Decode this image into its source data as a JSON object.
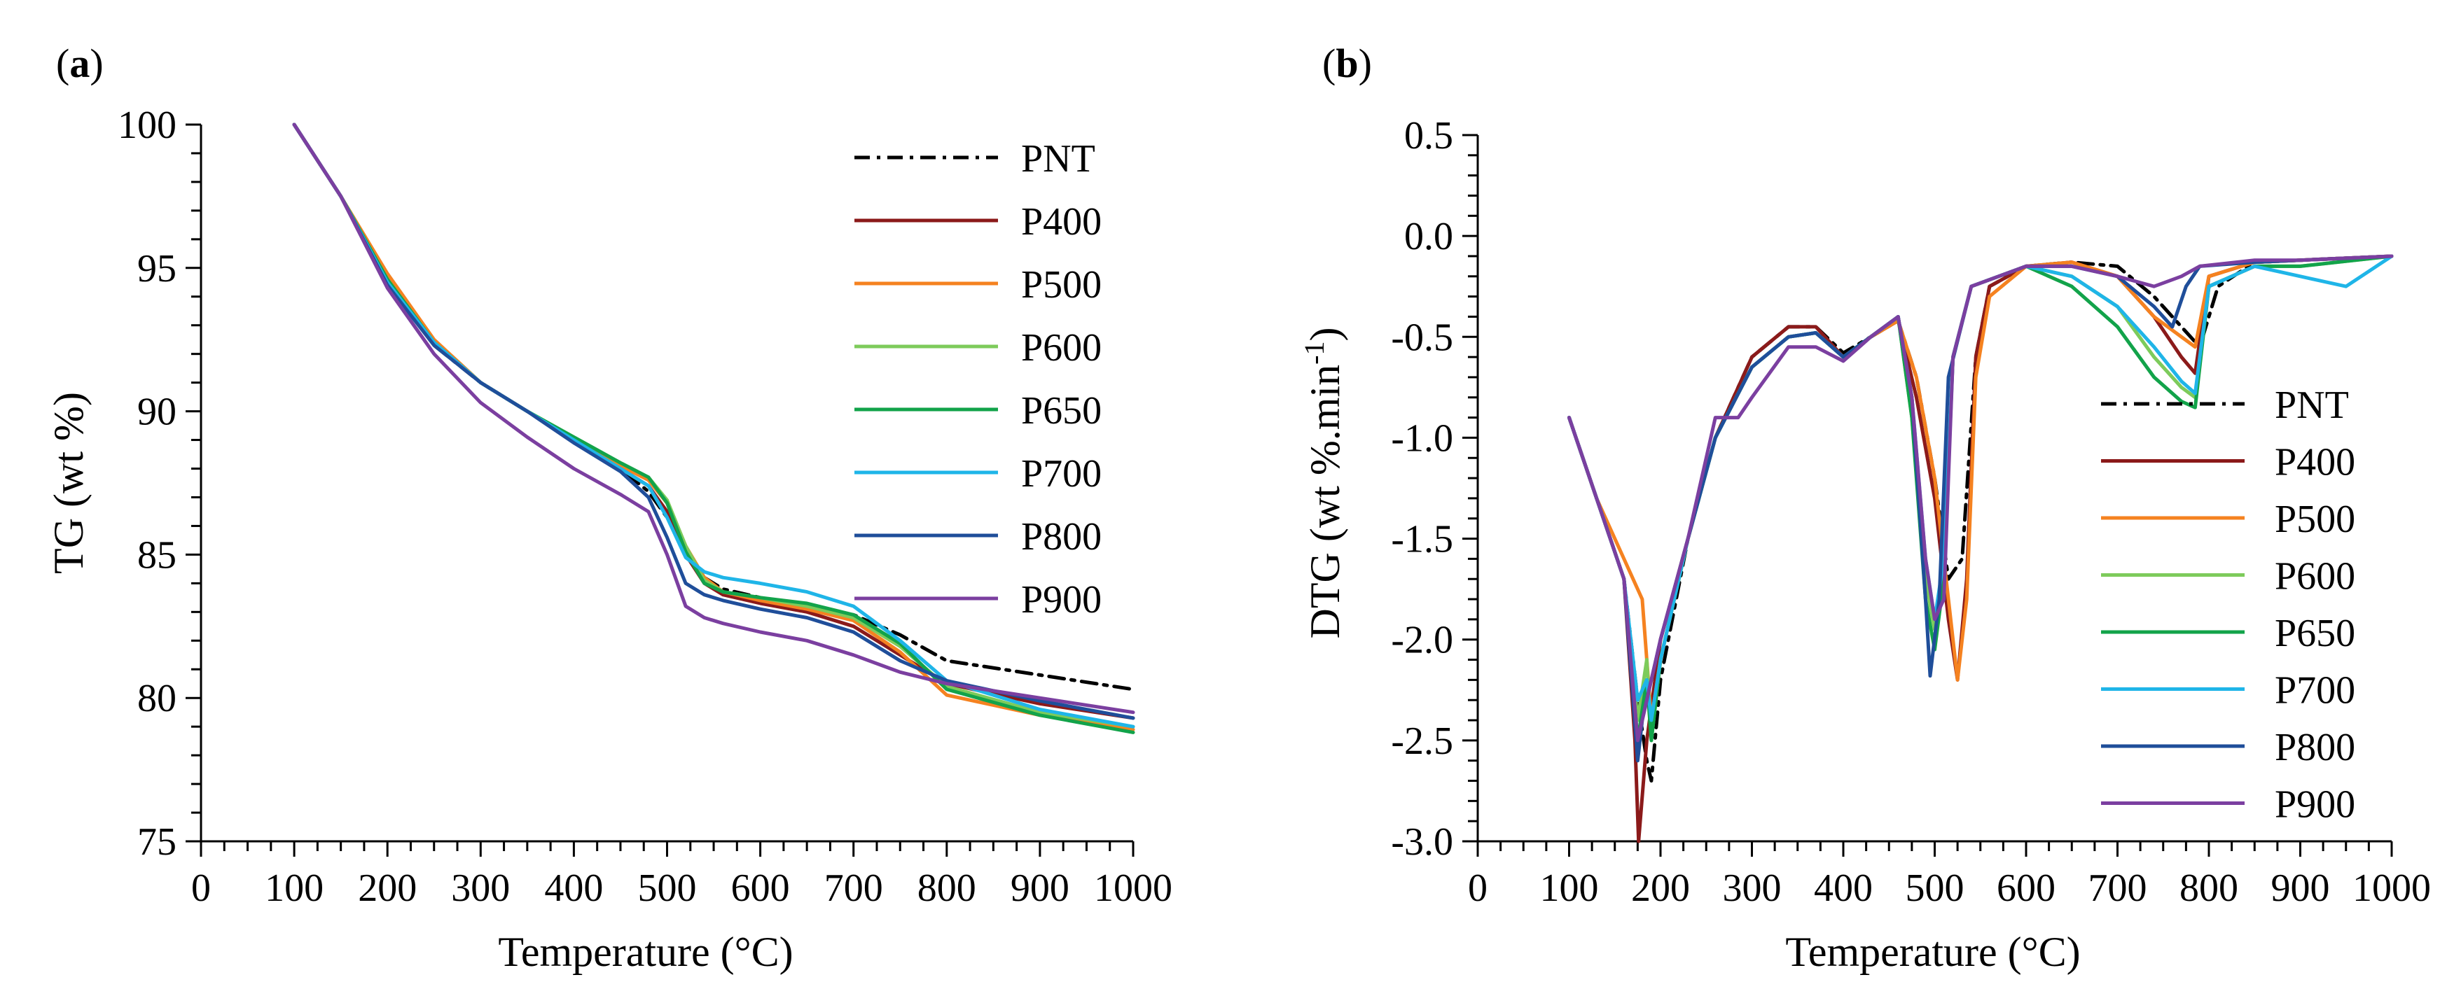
{
  "figure": {
    "panels": [
      {
        "label_open": "(",
        "label_letter": "a",
        "label_close": ")",
        "xlabel": "Temperature (°C)",
        "ylabel": "TG (wt %)"
      },
      {
        "label_open": "(",
        "label_letter": "b",
        "label_close": ")",
        "xlabel": "Temperature (°C)",
        "ylabel_main": "DTG (wt %.min",
        "ylabel_sup": "-1",
        "ylabel_end": ")"
      }
    ]
  },
  "chart_data": [
    {
      "type": "line",
      "title": "(a)",
      "xlabel": "Temperature (°C)",
      "ylabel": "TG (wt %)",
      "xlim": [
        0,
        1000
      ],
      "ylim": [
        75,
        100
      ],
      "x_ticks": [
        0,
        100,
        200,
        300,
        400,
        500,
        600,
        700,
        800,
        900,
        1000
      ],
      "y_ticks": [
        75,
        80,
        85,
        90,
        95,
        100
      ],
      "x_tick_labels": [
        "0",
        "100",
        "200",
        "300",
        "400",
        "500",
        "600",
        "700",
        "800",
        "900",
        "1000"
      ],
      "y_tick_labels": [
        "75",
        "80",
        "85",
        "90",
        "95",
        "100"
      ],
      "grid": false,
      "legend_position": "top-right",
      "series": [
        {
          "name": "PNT",
          "color": "#000000",
          "dash": "dashdot",
          "x": [
            100,
            150,
            200,
            250,
            300,
            350,
            400,
            450,
            480,
            500,
            520,
            540,
            560,
            600,
            650,
            700,
            750,
            800,
            900,
            1000
          ],
          "y": [
            100,
            97.5,
            94.5,
            92.3,
            91.0,
            90.0,
            89.0,
            88.0,
            87.2,
            86.3,
            85.0,
            84.2,
            83.8,
            83.5,
            83.2,
            82.9,
            82.2,
            81.3,
            80.8,
            80.3
          ]
        },
        {
          "name": "P400",
          "color": "#8B1A1A",
          "dash": "solid",
          "x": [
            100,
            150,
            200,
            250,
            300,
            350,
            400,
            450,
            480,
            500,
            520,
            540,
            560,
            600,
            650,
            700,
            750,
            800,
            900,
            1000
          ],
          "y": [
            100,
            97.5,
            94.6,
            92.4,
            91.0,
            90.0,
            89.0,
            88.0,
            87.4,
            86.5,
            85.0,
            84.0,
            83.6,
            83.3,
            83.0,
            82.5,
            81.5,
            80.5,
            79.8,
            79.3
          ]
        },
        {
          "name": "P500",
          "color": "#F58220",
          "dash": "solid",
          "x": [
            100,
            150,
            200,
            250,
            300,
            350,
            400,
            450,
            480,
            500,
            520,
            540,
            560,
            600,
            650,
            700,
            750,
            800,
            900,
            1000
          ],
          "y": [
            100,
            97.5,
            94.8,
            92.5,
            91.0,
            90.0,
            89.0,
            88.1,
            87.6,
            86.8,
            85.3,
            84.2,
            83.7,
            83.4,
            83.1,
            82.7,
            81.6,
            80.1,
            79.4,
            78.9
          ]
        },
        {
          "name": "P600",
          "color": "#7DCB5B",
          "dash": "solid",
          "x": [
            100,
            150,
            200,
            250,
            300,
            350,
            400,
            450,
            480,
            500,
            520,
            540,
            560,
            600,
            650,
            700,
            750,
            800,
            900,
            1000
          ],
          "y": [
            100,
            97.5,
            94.6,
            92.4,
            91.0,
            90.0,
            89.1,
            88.2,
            87.7,
            86.9,
            85.3,
            84.1,
            83.7,
            83.5,
            83.2,
            82.8,
            81.8,
            80.4,
            79.5,
            79.0
          ]
        },
        {
          "name": "P650",
          "color": "#12A34A",
          "dash": "solid",
          "x": [
            100,
            150,
            200,
            250,
            300,
            350,
            400,
            450,
            480,
            500,
            520,
            540,
            560,
            600,
            650,
            700,
            750,
            800,
            900,
            1000
          ],
          "y": [
            100,
            97.5,
            94.6,
            92.4,
            91.0,
            90.0,
            89.1,
            88.2,
            87.7,
            86.8,
            85.1,
            84.0,
            83.7,
            83.5,
            83.3,
            82.9,
            81.9,
            80.3,
            79.4,
            78.8
          ]
        },
        {
          "name": "P700",
          "color": "#1FB5E8",
          "dash": "solid",
          "x": [
            100,
            150,
            200,
            250,
            300,
            350,
            400,
            450,
            480,
            500,
            520,
            540,
            560,
            600,
            650,
            700,
            750,
            800,
            900,
            1000
          ],
          "y": [
            100,
            97.5,
            94.5,
            92.4,
            91.0,
            90.0,
            89.0,
            88.0,
            87.4,
            86.3,
            84.9,
            84.4,
            84.2,
            84.0,
            83.7,
            83.2,
            82.0,
            80.6,
            79.6,
            79.0
          ]
        },
        {
          "name": "P800",
          "color": "#1F4E9A",
          "dash": "solid",
          "x": [
            100,
            150,
            200,
            250,
            300,
            350,
            400,
            450,
            480,
            500,
            520,
            540,
            560,
            600,
            650,
            700,
            750,
            800,
            900,
            1000
          ],
          "y": [
            100,
            97.5,
            94.4,
            92.3,
            91.0,
            90.0,
            88.9,
            87.9,
            87.0,
            85.6,
            84.0,
            83.6,
            83.4,
            83.1,
            82.8,
            82.3,
            81.3,
            80.6,
            79.9,
            79.3
          ]
        },
        {
          "name": "P900",
          "color": "#7B3FA0",
          "dash": "solid",
          "x": [
            100,
            150,
            200,
            250,
            300,
            350,
            400,
            450,
            480,
            500,
            520,
            540,
            560,
            600,
            650,
            700,
            750,
            800,
            900,
            1000
          ],
          "y": [
            100,
            97.5,
            94.3,
            92.0,
            90.3,
            89.1,
            88.0,
            87.1,
            86.5,
            85.0,
            83.2,
            82.8,
            82.6,
            82.3,
            82.0,
            81.5,
            80.9,
            80.5,
            80.0,
            79.5
          ]
        }
      ]
    },
    {
      "type": "line",
      "title": "(b)",
      "xlabel": "Temperature (°C)",
      "ylabel": "DTG (wt %.min-1)",
      "xlim": [
        0,
        1000
      ],
      "ylim": [
        -3.0,
        0.5
      ],
      "x_ticks": [
        0,
        100,
        200,
        300,
        400,
        500,
        600,
        700,
        800,
        900,
        1000
      ],
      "y_ticks": [
        -3.0,
        -2.5,
        -2.0,
        -1.5,
        -1.0,
        -0.5,
        0.0,
        0.5
      ],
      "x_tick_labels": [
        "0",
        "100",
        "200",
        "300",
        "400",
        "500",
        "600",
        "700",
        "800",
        "900",
        "1000"
      ],
      "y_tick_labels": [
        "-3.0",
        "-2.5",
        "-2.0",
        "-1.5",
        "-1.0",
        "-0.5",
        "0.0",
        "0.5"
      ],
      "grid": false,
      "legend_position": "bottom-right",
      "series": [
        {
          "name": "PNT",
          "color": "#000000",
          "dash": "dashdot",
          "x": [
            100,
            130,
            160,
            175,
            185,
            190,
            200,
            230,
            260,
            300,
            340,
            370,
            400,
            430,
            460,
            480,
            500,
            515,
            530,
            545,
            560,
            600,
            650,
            700,
            740,
            770,
            790,
            810,
            850,
            900,
            1000
          ],
          "y": [
            -0.9,
            -1.3,
            -1.7,
            -2.3,
            -2.6,
            -2.7,
            -2.2,
            -1.5,
            -1.0,
            -0.6,
            -0.45,
            -0.45,
            -0.58,
            -0.5,
            -0.42,
            -0.7,
            -1.2,
            -1.7,
            -1.6,
            -0.6,
            -0.25,
            -0.15,
            -0.13,
            -0.15,
            -0.3,
            -0.45,
            -0.55,
            -0.25,
            -0.13,
            -0.12,
            -0.1
          ]
        },
        {
          "name": "P400",
          "color": "#8B1A1A",
          "dash": "solid",
          "x": [
            100,
            130,
            160,
            172,
            176,
            185,
            200,
            230,
            260,
            300,
            340,
            370,
            400,
            430,
            460,
            480,
            500,
            515,
            525,
            535,
            545,
            560,
            600,
            650,
            700,
            740,
            770,
            785,
            800,
            850,
            900,
            1000
          ],
          "y": [
            -0.9,
            -1.3,
            -1.7,
            -2.5,
            -3.0,
            -2.5,
            -2.0,
            -1.5,
            -1.0,
            -0.6,
            -0.45,
            -0.45,
            -0.6,
            -0.5,
            -0.42,
            -0.8,
            -1.3,
            -1.9,
            -2.2,
            -1.7,
            -0.6,
            -0.25,
            -0.15,
            -0.13,
            -0.2,
            -0.4,
            -0.6,
            -0.68,
            -0.2,
            -0.13,
            -0.12,
            -0.1
          ]
        },
        {
          "name": "P500",
          "color": "#F58220",
          "dash": "solid",
          "x": [
            100,
            130,
            160,
            170,
            180,
            190,
            200,
            230,
            260,
            300,
            340,
            370,
            400,
            430,
            460,
            480,
            500,
            515,
            525,
            535,
            545,
            560,
            600,
            650,
            700,
            740,
            770,
            785,
            800,
            850,
            900,
            1000
          ],
          "y": [
            -0.9,
            -1.3,
            -1.6,
            -1.7,
            -1.8,
            -2.4,
            -2.1,
            -1.5,
            -1.0,
            -0.65,
            -0.5,
            -0.48,
            -0.6,
            -0.5,
            -0.42,
            -0.7,
            -1.2,
            -1.8,
            -2.2,
            -1.8,
            -0.7,
            -0.3,
            -0.15,
            -0.13,
            -0.2,
            -0.4,
            -0.5,
            -0.55,
            -0.2,
            -0.13,
            -0.12,
            -0.1
          ]
        },
        {
          "name": "P600",
          "color": "#7DCB5B",
          "dash": "solid",
          "x": [
            100,
            130,
            160,
            175,
            185,
            190,
            200,
            230,
            260,
            300,
            340,
            370,
            400,
            430,
            460,
            475,
            490,
            500,
            510,
            520,
            540,
            600,
            650,
            700,
            740,
            770,
            785,
            800,
            850,
            900,
            1000
          ],
          "y": [
            -0.9,
            -1.3,
            -1.7,
            -2.4,
            -2.1,
            -2.5,
            -2.1,
            -1.5,
            -1.0,
            -0.65,
            -0.5,
            -0.48,
            -0.6,
            -0.5,
            -0.4,
            -0.9,
            -1.7,
            -1.95,
            -1.6,
            -0.6,
            -0.25,
            -0.15,
            -0.2,
            -0.35,
            -0.6,
            -0.75,
            -0.8,
            -0.25,
            -0.15,
            -0.15,
            -0.1
          ]
        },
        {
          "name": "P650",
          "color": "#12A34A",
          "dash": "solid",
          "x": [
            100,
            130,
            160,
            175,
            185,
            190,
            200,
            230,
            260,
            300,
            340,
            370,
            400,
            430,
            460,
            475,
            490,
            500,
            510,
            520,
            540,
            600,
            650,
            700,
            740,
            770,
            785,
            800,
            850,
            900,
            1000
          ],
          "y": [
            -0.9,
            -1.3,
            -1.7,
            -2.5,
            -2.2,
            -2.5,
            -2.1,
            -1.5,
            -1.0,
            -0.65,
            -0.5,
            -0.48,
            -0.6,
            -0.5,
            -0.4,
            -0.9,
            -1.8,
            -2.05,
            -1.7,
            -0.6,
            -0.25,
            -0.15,
            -0.25,
            -0.45,
            -0.7,
            -0.82,
            -0.85,
            -0.25,
            -0.15,
            -0.15,
            -0.1
          ]
        },
        {
          "name": "P700",
          "color": "#1FB5E8",
          "dash": "solid",
          "x": [
            100,
            130,
            160,
            175,
            185,
            190,
            200,
            230,
            260,
            300,
            340,
            370,
            400,
            430,
            460,
            475,
            490,
            500,
            510,
            520,
            540,
            600,
            650,
            700,
            740,
            770,
            785,
            800,
            850,
            900,
            950,
            1000
          ],
          "y": [
            -0.9,
            -1.3,
            -1.7,
            -2.3,
            -2.2,
            -2.4,
            -2.1,
            -1.5,
            -1.0,
            -0.65,
            -0.5,
            -0.48,
            -0.6,
            -0.5,
            -0.4,
            -0.8,
            -1.6,
            -1.9,
            -1.6,
            -0.6,
            -0.25,
            -0.15,
            -0.2,
            -0.35,
            -0.55,
            -0.72,
            -0.78,
            -0.25,
            -0.15,
            -0.2,
            -0.25,
            -0.1
          ]
        },
        {
          "name": "P800",
          "color": "#1F4E9A",
          "dash": "solid",
          "x": [
            100,
            130,
            160,
            175,
            180,
            190,
            200,
            230,
            260,
            300,
            340,
            370,
            400,
            430,
            460,
            475,
            490,
            495,
            505,
            515,
            540,
            600,
            650,
            700,
            740,
            760,
            775,
            790,
            850,
            900,
            1000
          ],
          "y": [
            -0.9,
            -1.3,
            -1.7,
            -2.6,
            -2.4,
            -2.2,
            -2.0,
            -1.5,
            -1.0,
            -0.65,
            -0.5,
            -0.48,
            -0.6,
            -0.5,
            -0.4,
            -0.8,
            -1.8,
            -2.18,
            -1.8,
            -0.7,
            -0.25,
            -0.15,
            -0.15,
            -0.2,
            -0.35,
            -0.45,
            -0.25,
            -0.15,
            -0.13,
            -0.12,
            -0.1
          ]
        },
        {
          "name": "P900",
          "color": "#7B3FA0",
          "dash": "solid",
          "x": [
            100,
            130,
            160,
            175,
            185,
            200,
            230,
            260,
            285,
            300,
            340,
            370,
            400,
            430,
            460,
            475,
            490,
            500,
            510,
            520,
            540,
            600,
            650,
            700,
            740,
            770,
            790,
            850,
            900,
            1000
          ],
          "y": [
            -0.9,
            -1.3,
            -1.7,
            -2.5,
            -2.3,
            -2.0,
            -1.5,
            -0.9,
            -0.9,
            -0.8,
            -0.55,
            -0.55,
            -0.62,
            -0.5,
            -0.4,
            -0.8,
            -1.6,
            -1.9,
            -1.8,
            -0.6,
            -0.25,
            -0.15,
            -0.15,
            -0.2,
            -0.25,
            -0.2,
            -0.15,
            -0.12,
            -0.12,
            -0.1
          ]
        }
      ]
    }
  ]
}
